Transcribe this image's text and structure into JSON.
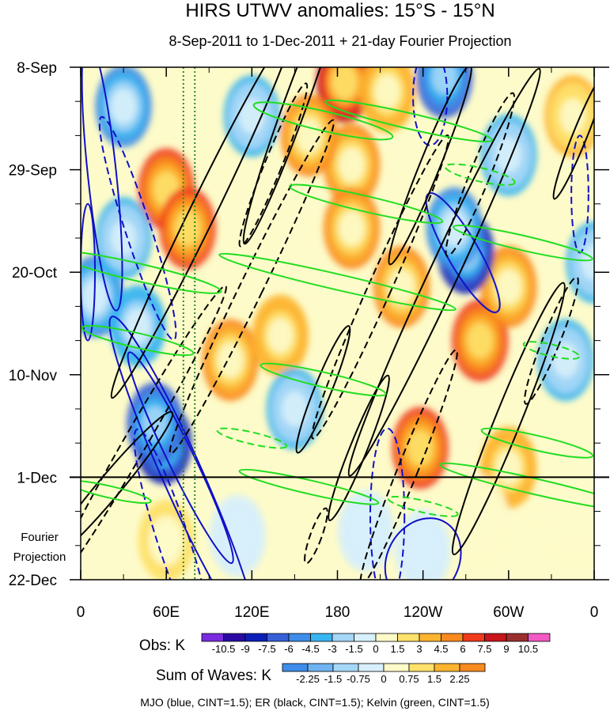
{
  "chart_data": {
    "type": "heatmap",
    "title": "HIRS UTWV anomalies: 15°S - 15°N",
    "subtitle": "8-Sep-2011 to 1-Dec-2011 + 21-day Fourier Projection",
    "x_ticks": [
      "0",
      "60E",
      "120E",
      "180",
      "120W",
      "60W",
      "0"
    ],
    "x_tick_values": [
      0,
      60,
      120,
      180,
      240,
      300,
      360
    ],
    "xlim": [
      0,
      360
    ],
    "y_ticks": [
      "8-Sep",
      "29-Sep",
      "20-Oct",
      "10-Nov",
      "1-Dec",
      "22-Dec"
    ],
    "y_tick_days": [
      0,
      21,
      42,
      63,
      84,
      105
    ],
    "ylim_days": [
      0,
      105
    ],
    "projection_start_day": 84,
    "projection_label_line1": "Fourier",
    "projection_label_line2": "Projection",
    "reference_lines_lon": [
      72,
      80
    ],
    "obs_colorbar": {
      "label": "Obs: K",
      "levels": [
        "-10.5",
        "-9",
        "-7.5",
        "-6",
        "-4.5",
        "-3",
        "-1.5",
        "0",
        "1.5",
        "3",
        "4.5",
        "6",
        "7.5",
        "9",
        "10.5"
      ],
      "colors": [
        "#7b2be0",
        "#2a0aa3",
        "#0b1fb8",
        "#3660d8",
        "#3e8de8",
        "#38b6f1",
        "#a5d7f6",
        "#d7f0fb",
        "#fdfbc9",
        "#fde16a",
        "#fdb42e",
        "#f98a1f",
        "#f03a1c",
        "#c8141c",
        "#9b2f2f",
        "#f45ac4"
      ]
    },
    "waves_colorbar": {
      "label": "Sum of Waves: K",
      "levels": [
        "-2.25",
        "-1.5",
        "-0.75",
        "0",
        "0.75",
        "1.5",
        "2.25"
      ],
      "colors": [
        "#3e8de8",
        "#6fb3f0",
        "#a5d7f6",
        "#d7f0fb",
        "#fdfbc9",
        "#fde16a",
        "#fdb42e",
        "#f98a1f"
      ]
    },
    "legend_text": "MJO (blue, CINT=1.5); ER (black, CINT=1.5); Kelvin (green, CINT=1.5)",
    "series": [
      {
        "name": "MJO",
        "color": "#1010c8",
        "cint": 1.5
      },
      {
        "name": "ER",
        "color": "#000000",
        "cint": 1.5
      },
      {
        "name": "Kelvin",
        "color": "#22dd22",
        "cint": 1.5
      }
    ],
    "anomaly_features": [
      {
        "lon": 185,
        "day": 3,
        "value": 8.5
      },
      {
        "lon": 215,
        "day": 5,
        "value": 4.0
      },
      {
        "lon": 60,
        "day": 25,
        "value": 6.0
      },
      {
        "lon": 75,
        "day": 33,
        "value": 7.0
      },
      {
        "lon": 190,
        "day": 20,
        "value": 5.5
      },
      {
        "lon": 190,
        "day": 33,
        "value": 5.0
      },
      {
        "lon": 225,
        "day": 45,
        "value": 5.5
      },
      {
        "lon": 280,
        "day": 56,
        "value": 6.0
      },
      {
        "lon": 238,
        "day": 78,
        "value": 7.0
      },
      {
        "lon": 105,
        "day": 60,
        "value": 4.5
      },
      {
        "lon": 140,
        "day": 55,
        "value": 4.0
      },
      {
        "lon": 160,
        "day": 14,
        "value": 5.0
      },
      {
        "lon": 300,
        "day": 45,
        "value": 4.5
      },
      {
        "lon": 345,
        "day": 10,
        "value": 3.5
      },
      {
        "lon": 300,
        "day": 82,
        "value": 4.0
      },
      {
        "lon": 60,
        "day": 97,
        "value": 2.0
      },
      {
        "lon": 280,
        "day": 92,
        "value": 0.9
      },
      {
        "lon": 345,
        "day": 92,
        "value": 0.9
      },
      {
        "lon": 58,
        "day": 77,
        "value": -9.0
      },
      {
        "lon": 52,
        "day": 73,
        "value": -7.0
      },
      {
        "lon": 30,
        "day": 8,
        "value": -5.0
      },
      {
        "lon": 270,
        "day": 38,
        "value": -9.0
      },
      {
        "lon": 262,
        "day": 33,
        "value": -6.0
      },
      {
        "lon": 255,
        "day": 2,
        "value": -6.5
      },
      {
        "lon": 10,
        "day": 47,
        "value": -5.0
      },
      {
        "lon": 40,
        "day": 53,
        "value": -4.5
      },
      {
        "lon": 30,
        "day": 35,
        "value": -3.5
      },
      {
        "lon": 120,
        "day": 10,
        "value": -4.0
      },
      {
        "lon": 340,
        "day": 60,
        "value": -3.5
      },
      {
        "lon": 150,
        "day": 70,
        "value": -3.5
      },
      {
        "lon": 300,
        "day": 18,
        "value": -3.5
      },
      {
        "lon": 360,
        "day": 40,
        "value": -3.5
      },
      {
        "lon": 240,
        "day": 99,
        "value": -1.2
      },
      {
        "lon": 110,
        "day": 96,
        "value": -0.8
      },
      {
        "lon": 200,
        "day": 95,
        "value": -0.7
      }
    ],
    "mjo_contours": [
      {
        "lon": 15,
        "day": 22,
        "rx": 10,
        "ry": 28,
        "angle": -6,
        "dashed": false
      },
      {
        "lon": 5,
        "day": 42,
        "rx": 5,
        "ry": 14,
        "angle": 0,
        "dashed": false
      },
      {
        "lon": 70,
        "day": 80,
        "rx": 9,
        "ry": 24,
        "angle": -26,
        "dashed": false
      },
      {
        "lon": 72,
        "day": 84,
        "rx": 14,
        "ry": 36,
        "angle": -24,
        "dashed": false
      },
      {
        "lon": 268,
        "day": 38,
        "rx": 11,
        "ry": 14,
        "angle": -30,
        "dashed": false
      },
      {
        "lon": 240,
        "day": 101,
        "rx": 25,
        "ry": 9,
        "angle": 30,
        "dashed": false
      },
      {
        "lon": 40,
        "day": 33,
        "rx": 9,
        "ry": 24,
        "angle": -18,
        "dashed": true
      },
      {
        "lon": 65,
        "day": 97,
        "rx": 11,
        "ry": 24,
        "angle": -18,
        "dashed": true
      },
      {
        "lon": 245,
        "day": 6,
        "rx": 12,
        "ry": 10,
        "angle": 0,
        "dashed": true
      },
      {
        "lon": 215,
        "day": 92,
        "rx": 12,
        "ry": 18,
        "angle": 0,
        "dashed": true
      },
      {
        "lon": 350,
        "day": 26,
        "rx": 6,
        "ry": 12,
        "angle": 0,
        "dashed": true
      }
    ],
    "er_contours": [
      {
        "lon": 85,
        "day": 30,
        "rx": 9,
        "ry": 42,
        "angle": 26,
        "dashed": false
      },
      {
        "lon": 150,
        "day": 8,
        "rx": 8,
        "ry": 30,
        "angle": 20,
        "dashed": false
      },
      {
        "lon": 255,
        "day": 42,
        "rx": 10,
        "ry": 46,
        "angle": 25,
        "dashed": false
      },
      {
        "lon": 245,
        "day": 20,
        "rx": 7,
        "ry": 22,
        "angle": 22,
        "dashed": false
      },
      {
        "lon": 300,
        "day": 72,
        "rx": 9,
        "ry": 30,
        "angle": 22,
        "dashed": false
      },
      {
        "lon": 195,
        "day": 78,
        "rx": 6,
        "ry": 16,
        "angle": 22,
        "dashed": false
      },
      {
        "lon": 170,
        "day": 66,
        "rx": 6,
        "ry": 14,
        "angle": 22,
        "dashed": false
      },
      {
        "lon": 350,
        "day": 14,
        "rx": 5,
        "ry": 14,
        "angle": 22,
        "dashed": false
      },
      {
        "lon": 20,
        "day": 86,
        "rx": 8,
        "ry": 20,
        "angle": 40,
        "dashed": false
      },
      {
        "lon": 120,
        "day": 45,
        "rx": 8,
        "ry": 38,
        "angle": 26,
        "dashed": true
      },
      {
        "lon": 210,
        "day": 45,
        "rx": 8,
        "ry": 34,
        "angle": 24,
        "dashed": true
      },
      {
        "lon": 40,
        "day": 76,
        "rx": 8,
        "ry": 36,
        "angle": 30,
        "dashed": true
      },
      {
        "lon": 280,
        "day": 22,
        "rx": 7,
        "ry": 18,
        "angle": 22,
        "dashed": true
      },
      {
        "lon": 230,
        "day": 82,
        "rx": 7,
        "ry": 26,
        "angle": 22,
        "dashed": true
      },
      {
        "lon": 135,
        "day": 20,
        "rx": 6,
        "ry": 18,
        "angle": 22,
        "dashed": true
      },
      {
        "lon": 330,
        "day": 56,
        "rx": 6,
        "ry": 14,
        "angle": 22,
        "dashed": true
      },
      {
        "lon": 165,
        "day": 96,
        "rx": 4,
        "ry": 6,
        "angle": 20,
        "dashed": true
      }
    ],
    "kelvin_contours": [
      {
        "lon": 170,
        "day": 11,
        "rx": 50,
        "ry": 2,
        "angle": 13,
        "dashed": false
      },
      {
        "lon": 230,
        "day": 11,
        "rx": 60,
        "ry": 1.6,
        "angle": 13,
        "dashed": false
      },
      {
        "lon": 200,
        "day": 28,
        "rx": 55,
        "ry": 1.6,
        "angle": 13,
        "dashed": false
      },
      {
        "lon": 40,
        "day": 42,
        "rx": 60,
        "ry": 1.8,
        "angle": 13,
        "dashed": false
      },
      {
        "lon": 180,
        "day": 44,
        "rx": 85,
        "ry": 1.6,
        "angle": 13,
        "dashed": false
      },
      {
        "lon": 310,
        "day": 36,
        "rx": 50,
        "ry": 1.5,
        "angle": 13,
        "dashed": false
      },
      {
        "lon": 40,
        "day": 56,
        "rx": 40,
        "ry": 1.5,
        "angle": 13,
        "dashed": false
      },
      {
        "lon": 170,
        "day": 64,
        "rx": 45,
        "ry": 1.5,
        "angle": 13,
        "dashed": false
      },
      {
        "lon": 320,
        "day": 77,
        "rx": 40,
        "ry": 1.5,
        "angle": 13,
        "dashed": false
      },
      {
        "lon": 320,
        "day": 86,
        "rx": 70,
        "ry": 1.6,
        "angle": 13,
        "dashed": false
      },
      {
        "lon": 160,
        "day": 86,
        "rx": 50,
        "ry": 1.4,
        "angle": 13,
        "dashed": false
      },
      {
        "lon": 20,
        "day": 87,
        "rx": 30,
        "ry": 1.2,
        "angle": 13,
        "dashed": false
      },
      {
        "lon": 280,
        "day": 22,
        "rx": 25,
        "ry": 1.4,
        "angle": 13,
        "dashed": true
      },
      {
        "lon": 330,
        "day": 58,
        "rx": 20,
        "ry": 1.2,
        "angle": 13,
        "dashed": true
      },
      {
        "lon": 120,
        "day": 76,
        "rx": 25,
        "ry": 1.2,
        "angle": 13,
        "dashed": true
      },
      {
        "lon": 240,
        "day": 90,
        "rx": 25,
        "ry": 1.2,
        "angle": 13,
        "dashed": true
      }
    ]
  }
}
